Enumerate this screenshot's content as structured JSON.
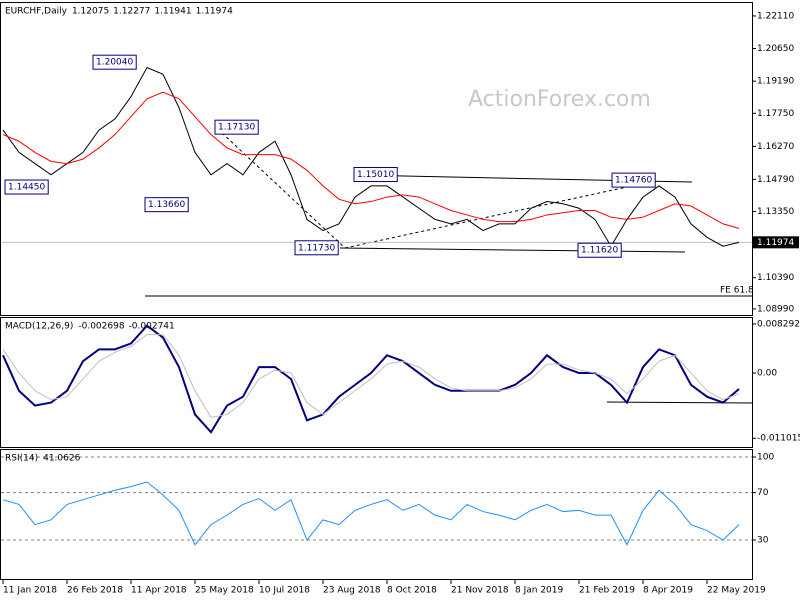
{
  "chart_data": [
    {
      "type": "line",
      "title": "EURCHF,Daily",
      "header_values": [
        1.12075,
        1.12277,
        1.11941,
        1.11974
      ],
      "watermark": "ActionForex.com",
      "ylim": [
        1.0872,
        1.2269
      ],
      "yticks": [
        {
          "value": 1.2211,
          "label": "1.22110"
        },
        {
          "value": 1.2065,
          "label": "1.20650"
        },
        {
          "value": 1.1919,
          "label": "1.19190"
        },
        {
          "value": 1.1775,
          "label": "1.17750"
        },
        {
          "value": 1.1627,
          "label": "1.16270"
        },
        {
          "value": 1.1479,
          "label": "1.14790"
        },
        {
          "value": 1.1335,
          "label": "1.13350"
        },
        {
          "value": 1.1039,
          "label": "1.10390"
        },
        {
          "value": 1.0899,
          "label": "1.08990"
        }
      ],
      "last_price": 1.11974,
      "annotations": [
        {
          "value": 1.2004,
          "label": "1.20040"
        },
        {
          "value": 1.1713,
          "label": "1.17130"
        },
        {
          "value": 1.1445,
          "label": "1.14450"
        },
        {
          "value": 1.1366,
          "label": "1.13660"
        },
        {
          "value": 1.1173,
          "label": "1.11730"
        },
        {
          "value": 1.1501,
          "label": "1.15010"
        },
        {
          "value": 1.1476,
          "label": "1.14760"
        },
        {
          "value": 1.1162,
          "label": "1.11620"
        }
      ],
      "fe_label": "FE 61.8",
      "series": [
        {
          "color": "#000000",
          "values": [
            1.17,
            1.16,
            1.155,
            1.15,
            1.155,
            1.16,
            1.17,
            1.175,
            1.185,
            1.198,
            1.195,
            1.18,
            1.16,
            1.15,
            1.155,
            1.15,
            1.16,
            1.165,
            1.15,
            1.13,
            1.125,
            1.128,
            1.14,
            1.145,
            1.145,
            1.14,
            1.135,
            1.13,
            1.128,
            1.13,
            1.125,
            1.128,
            1.128,
            1.135,
            1.138,
            1.137,
            1.135,
            1.13,
            1.118,
            1.13,
            1.14,
            1.145,
            1.14,
            1.128,
            1.122,
            1.118,
            1.1197
          ]
        },
        {
          "color": "#ff0000",
          "values": [
            1.168,
            1.165,
            1.16,
            1.156,
            1.155,
            1.157,
            1.162,
            1.168,
            1.176,
            1.184,
            1.187,
            1.184,
            1.176,
            1.168,
            1.162,
            1.159,
            1.159,
            1.159,
            1.157,
            1.152,
            1.145,
            1.139,
            1.137,
            1.138,
            1.14,
            1.141,
            1.14,
            1.137,
            1.134,
            1.132,
            1.13,
            1.129,
            1.129,
            1.13,
            1.132,
            1.133,
            1.134,
            1.134,
            1.131,
            1.13,
            1.131,
            1.134,
            1.137,
            1.136,
            1.132,
            1.128,
            1.126
          ]
        }
      ]
    },
    {
      "type": "line",
      "title": "MACD(12,26,9)",
      "header_values": [
        -0.002698,
        -0.002741
      ],
      "ylim": [
        -0.0125,
        0.0093
      ],
      "yticks": [
        0.008292,
        {
          "value": 0,
          "label": "0.00"
        },
        -0.011015
      ],
      "series": [
        {
          "color": "#000080",
          "values": [
            0.003,
            -0.003,
            -0.0055,
            -0.005,
            -0.003,
            0.002,
            0.004,
            0.004,
            0.005,
            0.008,
            0.006,
            0.001,
            -0.007,
            -0.01,
            -0.0055,
            -0.004,
            0.001,
            0.001,
            -0.001,
            -0.008,
            -0.007,
            -0.004,
            -0.002,
            0,
            0.003,
            0.002,
            0,
            -0.002,
            -0.003,
            -0.003,
            -0.003,
            -0.003,
            -0.002,
            0,
            0.003,
            0.001,
            0,
            0,
            -0.002,
            -0.005,
            0.001,
            0.004,
            0.003,
            -0.002,
            -0.004,
            -0.005,
            -0.0027
          ]
        },
        {
          "color": "#c0c0c0",
          "values": [
            0.004,
            0,
            -0.003,
            -0.0045,
            -0.004,
            -0.001,
            0.002,
            0.0035,
            0.0045,
            0.0065,
            0.0065,
            0.003,
            -0.003,
            -0.0075,
            -0.007,
            -0.005,
            -0.001,
            0.0005,
            0,
            -0.005,
            -0.007,
            -0.005,
            -0.003,
            -0.001,
            0.0015,
            0.002,
            0.001,
            -0.001,
            -0.0025,
            -0.003,
            -0.003,
            -0.003,
            -0.0025,
            -0.001,
            0.0015,
            0.0015,
            0.0005,
            0,
            -0.001,
            -0.0035,
            -0.001,
            0.002,
            0.003,
            0,
            -0.003,
            -0.0045,
            -0.0035
          ]
        }
      ]
    },
    {
      "type": "line",
      "title": "RSI(14)",
      "header_values": [
        41.0626
      ],
      "ylim": [
        -3.7,
        105.9
      ],
      "yticks": [
        100,
        70,
        30
      ],
      "grid": true,
      "categories": [
        "11 Jan 2018",
        null,
        null,
        null,
        "26 Feb 2018",
        null,
        null,
        null,
        "11 Apr 2018",
        null,
        null,
        null,
        "25 May 2018",
        null,
        null,
        null,
        "10 Jul 2018",
        null,
        null,
        null,
        "23 Aug 2018",
        null,
        null,
        null,
        "8 Oct 2018",
        null,
        null,
        null,
        "21 Nov 2018",
        null,
        null,
        null,
        "8 Jan 2019",
        null,
        null,
        null,
        "21 Feb 2019",
        null,
        null,
        null,
        "8 Apr 2019",
        null,
        null,
        null,
        "22 May 2019",
        null,
        null
      ],
      "series": [
        {
          "color": "#1e90ff",
          "values": [
            64,
            60,
            43,
            47,
            60,
            64,
            68,
            72,
            75,
            79,
            68,
            55,
            26,
            43,
            51,
            60,
            65,
            55,
            64,
            30,
            47,
            43,
            55,
            60,
            64,
            55,
            60,
            51,
            47,
            60,
            54,
            51,
            47,
            55,
            60,
            54,
            55,
            51,
            51,
            26,
            55,
            72,
            60,
            43,
            38,
            30,
            43
          ]
        }
      ]
    }
  ]
}
